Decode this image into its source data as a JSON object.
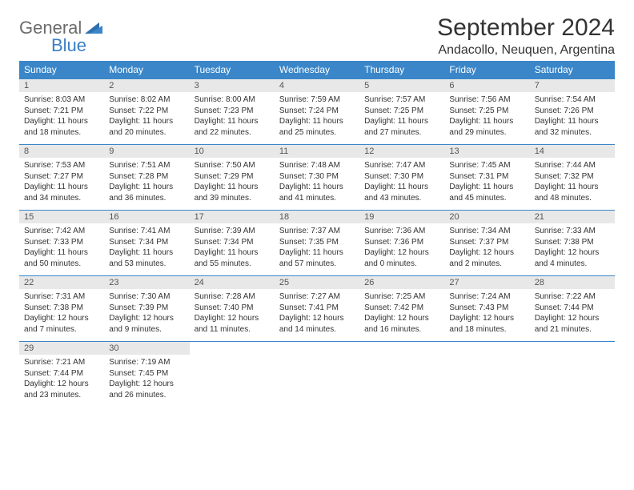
{
  "logo": {
    "text1": "General",
    "text2": "Blue"
  },
  "title": "September 2024",
  "location": "Andacollo, Neuquen, Argentina",
  "colors": {
    "header_bg": "#3a86c8",
    "header_text": "#ffffff",
    "daynum_bg": "#e8e8e8",
    "border": "#3a86c8",
    "logo_gray": "#6b6b6b",
    "logo_blue": "#3a7fc4"
  },
  "columns": [
    "Sunday",
    "Monday",
    "Tuesday",
    "Wednesday",
    "Thursday",
    "Friday",
    "Saturday"
  ],
  "weeks": [
    [
      {
        "n": "1",
        "sr": "8:03 AM",
        "ss": "7:21 PM",
        "dl": "11 hours and 18 minutes."
      },
      {
        "n": "2",
        "sr": "8:02 AM",
        "ss": "7:22 PM",
        "dl": "11 hours and 20 minutes."
      },
      {
        "n": "3",
        "sr": "8:00 AM",
        "ss": "7:23 PM",
        "dl": "11 hours and 22 minutes."
      },
      {
        "n": "4",
        "sr": "7:59 AM",
        "ss": "7:24 PM",
        "dl": "11 hours and 25 minutes."
      },
      {
        "n": "5",
        "sr": "7:57 AM",
        "ss": "7:25 PM",
        "dl": "11 hours and 27 minutes."
      },
      {
        "n": "6",
        "sr": "7:56 AM",
        "ss": "7:25 PM",
        "dl": "11 hours and 29 minutes."
      },
      {
        "n": "7",
        "sr": "7:54 AM",
        "ss": "7:26 PM",
        "dl": "11 hours and 32 minutes."
      }
    ],
    [
      {
        "n": "8",
        "sr": "7:53 AM",
        "ss": "7:27 PM",
        "dl": "11 hours and 34 minutes."
      },
      {
        "n": "9",
        "sr": "7:51 AM",
        "ss": "7:28 PM",
        "dl": "11 hours and 36 minutes."
      },
      {
        "n": "10",
        "sr": "7:50 AM",
        "ss": "7:29 PM",
        "dl": "11 hours and 39 minutes."
      },
      {
        "n": "11",
        "sr": "7:48 AM",
        "ss": "7:30 PM",
        "dl": "11 hours and 41 minutes."
      },
      {
        "n": "12",
        "sr": "7:47 AM",
        "ss": "7:30 PM",
        "dl": "11 hours and 43 minutes."
      },
      {
        "n": "13",
        "sr": "7:45 AM",
        "ss": "7:31 PM",
        "dl": "11 hours and 45 minutes."
      },
      {
        "n": "14",
        "sr": "7:44 AM",
        "ss": "7:32 PM",
        "dl": "11 hours and 48 minutes."
      }
    ],
    [
      {
        "n": "15",
        "sr": "7:42 AM",
        "ss": "7:33 PM",
        "dl": "11 hours and 50 minutes."
      },
      {
        "n": "16",
        "sr": "7:41 AM",
        "ss": "7:34 PM",
        "dl": "11 hours and 53 minutes."
      },
      {
        "n": "17",
        "sr": "7:39 AM",
        "ss": "7:34 PM",
        "dl": "11 hours and 55 minutes."
      },
      {
        "n": "18",
        "sr": "7:37 AM",
        "ss": "7:35 PM",
        "dl": "11 hours and 57 minutes."
      },
      {
        "n": "19",
        "sr": "7:36 AM",
        "ss": "7:36 PM",
        "dl": "12 hours and 0 minutes."
      },
      {
        "n": "20",
        "sr": "7:34 AM",
        "ss": "7:37 PM",
        "dl": "12 hours and 2 minutes."
      },
      {
        "n": "21",
        "sr": "7:33 AM",
        "ss": "7:38 PM",
        "dl": "12 hours and 4 minutes."
      }
    ],
    [
      {
        "n": "22",
        "sr": "7:31 AM",
        "ss": "7:38 PM",
        "dl": "12 hours and 7 minutes."
      },
      {
        "n": "23",
        "sr": "7:30 AM",
        "ss": "7:39 PM",
        "dl": "12 hours and 9 minutes."
      },
      {
        "n": "24",
        "sr": "7:28 AM",
        "ss": "7:40 PM",
        "dl": "12 hours and 11 minutes."
      },
      {
        "n": "25",
        "sr": "7:27 AM",
        "ss": "7:41 PM",
        "dl": "12 hours and 14 minutes."
      },
      {
        "n": "26",
        "sr": "7:25 AM",
        "ss": "7:42 PM",
        "dl": "12 hours and 16 minutes."
      },
      {
        "n": "27",
        "sr": "7:24 AM",
        "ss": "7:43 PM",
        "dl": "12 hours and 18 minutes."
      },
      {
        "n": "28",
        "sr": "7:22 AM",
        "ss": "7:44 PM",
        "dl": "12 hours and 21 minutes."
      }
    ],
    [
      {
        "n": "29",
        "sr": "7:21 AM",
        "ss": "7:44 PM",
        "dl": "12 hours and 23 minutes."
      },
      {
        "n": "30",
        "sr": "7:19 AM",
        "ss": "7:45 PM",
        "dl": "12 hours and 26 minutes."
      },
      null,
      null,
      null,
      null,
      null
    ]
  ]
}
